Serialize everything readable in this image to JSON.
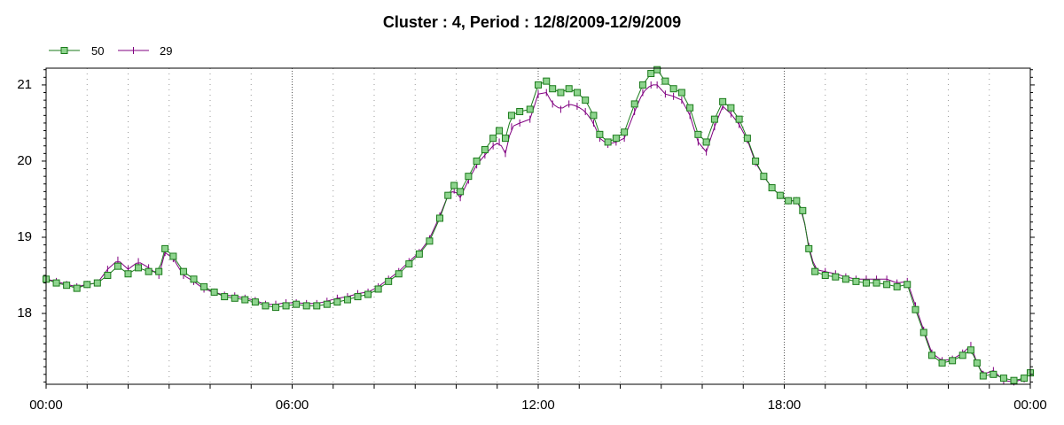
{
  "chart_data": {
    "type": "line",
    "title": "Cluster : 4, Period : 12/8/2009-12/9/2009",
    "xlabel": "",
    "ylabel": "",
    "x_ticks": [
      "00:00",
      "06:00",
      "12:00",
      "18:00",
      "00:00"
    ],
    "y_ticks": [
      18,
      19,
      20,
      21
    ],
    "xlim_hours": [
      0,
      24
    ],
    "ylim": [
      17.07,
      21.22
    ],
    "grid": "dotted vertical",
    "legend_position": "top-left",
    "series": [
      {
        "name": "50",
        "color": "#1a7a1a",
        "marker": "square",
        "marker_fill": "#8ed48e",
        "points": [
          [
            0.0,
            18.45
          ],
          [
            0.25,
            18.4
          ],
          [
            0.5,
            18.37
          ],
          [
            0.75,
            18.33
          ],
          [
            1.0,
            18.38
          ],
          [
            1.25,
            18.4
          ],
          [
            1.5,
            18.5
          ],
          [
            1.75,
            18.62
          ],
          [
            2.0,
            18.52
          ],
          [
            2.25,
            18.6
          ],
          [
            2.5,
            18.55
          ],
          [
            2.75,
            18.55
          ],
          [
            2.9,
            18.85
          ],
          [
            3.1,
            18.75
          ],
          [
            3.35,
            18.55
          ],
          [
            3.6,
            18.45
          ],
          [
            3.85,
            18.35
          ],
          [
            4.1,
            18.28
          ],
          [
            4.35,
            18.22
          ],
          [
            4.6,
            18.2
          ],
          [
            4.85,
            18.18
          ],
          [
            5.1,
            18.15
          ],
          [
            5.35,
            18.1
          ],
          [
            5.6,
            18.08
          ],
          [
            5.85,
            18.1
          ],
          [
            6.1,
            18.12
          ],
          [
            6.35,
            18.1
          ],
          [
            6.6,
            18.1
          ],
          [
            6.85,
            18.12
          ],
          [
            7.1,
            18.15
          ],
          [
            7.35,
            18.18
          ],
          [
            7.6,
            18.22
          ],
          [
            7.85,
            18.25
          ],
          [
            8.1,
            18.32
          ],
          [
            8.35,
            18.42
          ],
          [
            8.6,
            18.52
          ],
          [
            8.85,
            18.65
          ],
          [
            9.1,
            18.78
          ],
          [
            9.35,
            18.95
          ],
          [
            9.6,
            19.25
          ],
          [
            9.8,
            19.55
          ],
          [
            9.95,
            19.68
          ],
          [
            10.1,
            19.6
          ],
          [
            10.3,
            19.8
          ],
          [
            10.5,
            20.0
          ],
          [
            10.7,
            20.15
          ],
          [
            10.9,
            20.3
          ],
          [
            11.05,
            20.4
          ],
          [
            11.2,
            20.3
          ],
          [
            11.35,
            20.6
          ],
          [
            11.55,
            20.65
          ],
          [
            11.8,
            20.68
          ],
          [
            12.0,
            21.0
          ],
          [
            12.2,
            21.05
          ],
          [
            12.35,
            20.95
          ],
          [
            12.55,
            20.9
          ],
          [
            12.75,
            20.95
          ],
          [
            12.95,
            20.9
          ],
          [
            13.15,
            20.8
          ],
          [
            13.35,
            20.6
          ],
          [
            13.5,
            20.35
          ],
          [
            13.7,
            20.25
          ],
          [
            13.9,
            20.3
          ],
          [
            14.1,
            20.38
          ],
          [
            14.35,
            20.75
          ],
          [
            14.55,
            21.0
          ],
          [
            14.75,
            21.15
          ],
          [
            14.9,
            21.2
          ],
          [
            15.1,
            21.05
          ],
          [
            15.3,
            20.95
          ],
          [
            15.5,
            20.9
          ],
          [
            15.7,
            20.7
          ],
          [
            15.9,
            20.35
          ],
          [
            16.1,
            20.25
          ],
          [
            16.3,
            20.55
          ],
          [
            16.5,
            20.78
          ],
          [
            16.7,
            20.7
          ],
          [
            16.9,
            20.55
          ],
          [
            17.1,
            20.3
          ],
          [
            17.3,
            20.0
          ],
          [
            17.5,
            19.8
          ],
          [
            17.7,
            19.65
          ],
          [
            17.9,
            19.55
          ],
          [
            18.1,
            19.48
          ],
          [
            18.3,
            19.48
          ],
          [
            18.45,
            19.35
          ],
          [
            18.6,
            18.85
          ],
          [
            18.75,
            18.55
          ],
          [
            19.0,
            18.5
          ],
          [
            19.25,
            18.48
          ],
          [
            19.5,
            18.45
          ],
          [
            19.75,
            18.42
          ],
          [
            20.0,
            18.4
          ],
          [
            20.25,
            18.4
          ],
          [
            20.5,
            18.38
          ],
          [
            20.75,
            18.35
          ],
          [
            21.0,
            18.38
          ],
          [
            21.2,
            18.05
          ],
          [
            21.4,
            17.75
          ],
          [
            21.6,
            17.45
          ],
          [
            21.85,
            17.35
          ],
          [
            22.1,
            17.38
          ],
          [
            22.35,
            17.45
          ],
          [
            22.55,
            17.52
          ],
          [
            22.7,
            17.35
          ],
          [
            22.85,
            17.18
          ],
          [
            23.1,
            17.2
          ],
          [
            23.35,
            17.15
          ],
          [
            23.6,
            17.12
          ],
          [
            23.85,
            17.15
          ],
          [
            24.0,
            17.22
          ]
        ]
      },
      {
        "name": "29",
        "color": "#800080",
        "marker": "plus",
        "points": [
          [
            0.0,
            18.45
          ],
          [
            0.25,
            18.42
          ],
          [
            0.5,
            18.38
          ],
          [
            0.75,
            18.35
          ],
          [
            1.0,
            18.38
          ],
          [
            1.25,
            18.4
          ],
          [
            1.5,
            18.58
          ],
          [
            1.75,
            18.7
          ],
          [
            2.0,
            18.58
          ],
          [
            2.25,
            18.68
          ],
          [
            2.5,
            18.6
          ],
          [
            2.75,
            18.5
          ],
          [
            2.9,
            18.8
          ],
          [
            3.1,
            18.72
          ],
          [
            3.35,
            18.5
          ],
          [
            3.6,
            18.42
          ],
          [
            3.85,
            18.32
          ],
          [
            4.1,
            18.28
          ],
          [
            4.35,
            18.24
          ],
          [
            4.6,
            18.23
          ],
          [
            4.85,
            18.2
          ],
          [
            5.1,
            18.17
          ],
          [
            5.35,
            18.12
          ],
          [
            5.6,
            18.12
          ],
          [
            5.85,
            18.14
          ],
          [
            6.1,
            18.14
          ],
          [
            6.35,
            18.13
          ],
          [
            6.6,
            18.13
          ],
          [
            6.85,
            18.16
          ],
          [
            7.1,
            18.2
          ],
          [
            7.35,
            18.22
          ],
          [
            7.6,
            18.26
          ],
          [
            7.85,
            18.28
          ],
          [
            8.1,
            18.35
          ],
          [
            8.35,
            18.45
          ],
          [
            8.6,
            18.55
          ],
          [
            8.85,
            18.68
          ],
          [
            9.1,
            18.8
          ],
          [
            9.35,
            18.98
          ],
          [
            9.6,
            19.28
          ],
          [
            9.8,
            19.55
          ],
          [
            9.95,
            19.62
          ],
          [
            10.1,
            19.52
          ],
          [
            10.3,
            19.75
          ],
          [
            10.5,
            19.95
          ],
          [
            10.7,
            20.08
          ],
          [
            10.9,
            20.2
          ],
          [
            11.05,
            20.25
          ],
          [
            11.2,
            20.1
          ],
          [
            11.35,
            20.45
          ],
          [
            11.55,
            20.5
          ],
          [
            11.8,
            20.55
          ],
          [
            12.0,
            20.88
          ],
          [
            12.2,
            20.9
          ],
          [
            12.35,
            20.75
          ],
          [
            12.55,
            20.68
          ],
          [
            12.75,
            20.75
          ],
          [
            12.95,
            20.72
          ],
          [
            13.15,
            20.65
          ],
          [
            13.35,
            20.5
          ],
          [
            13.5,
            20.3
          ],
          [
            13.7,
            20.22
          ],
          [
            13.9,
            20.25
          ],
          [
            14.1,
            20.3
          ],
          [
            14.35,
            20.65
          ],
          [
            14.55,
            20.9
          ],
          [
            14.75,
            21.0
          ],
          [
            14.9,
            21.0
          ],
          [
            15.1,
            20.88
          ],
          [
            15.3,
            20.85
          ],
          [
            15.5,
            20.8
          ],
          [
            15.7,
            20.6
          ],
          [
            15.9,
            20.25
          ],
          [
            16.1,
            20.12
          ],
          [
            16.3,
            20.45
          ],
          [
            16.5,
            20.72
          ],
          [
            16.7,
            20.62
          ],
          [
            16.9,
            20.48
          ],
          [
            17.1,
            20.28
          ],
          [
            17.3,
            19.98
          ],
          [
            17.5,
            19.8
          ],
          [
            17.7,
            19.65
          ],
          [
            17.9,
            19.55
          ],
          [
            18.1,
            19.48
          ],
          [
            18.3,
            19.48
          ],
          [
            18.45,
            19.32
          ],
          [
            18.6,
            18.88
          ],
          [
            18.75,
            18.58
          ],
          [
            19.0,
            18.55
          ],
          [
            19.25,
            18.52
          ],
          [
            19.5,
            18.48
          ],
          [
            19.75,
            18.45
          ],
          [
            20.0,
            18.45
          ],
          [
            20.25,
            18.45
          ],
          [
            20.5,
            18.45
          ],
          [
            20.75,
            18.4
          ],
          [
            21.0,
            18.42
          ],
          [
            21.2,
            18.1
          ],
          [
            21.4,
            17.78
          ],
          [
            21.6,
            17.48
          ],
          [
            21.85,
            17.38
          ],
          [
            22.1,
            17.4
          ],
          [
            22.35,
            17.48
          ],
          [
            22.55,
            17.58
          ],
          [
            22.7,
            17.35
          ],
          [
            22.85,
            17.2
          ],
          [
            23.1,
            17.25
          ],
          [
            23.35,
            17.12
          ],
          [
            23.6,
            17.1
          ],
          [
            23.85,
            17.14
          ],
          [
            24.0,
            17.22
          ]
        ]
      }
    ]
  }
}
